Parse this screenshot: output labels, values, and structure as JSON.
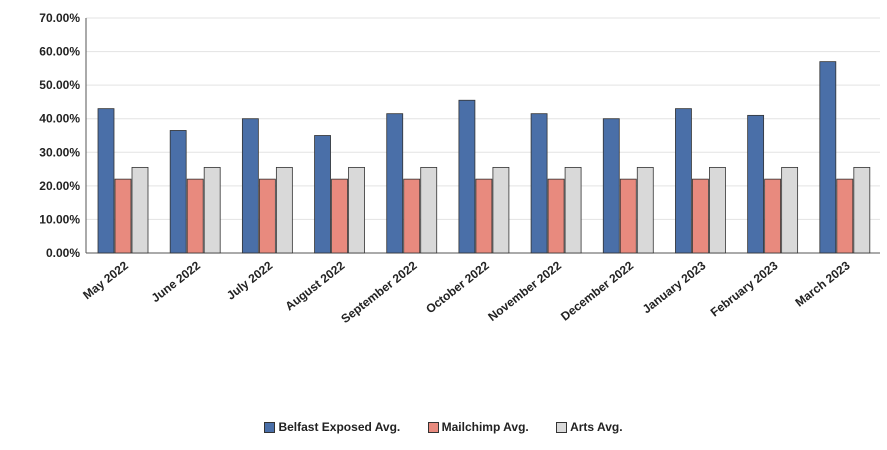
{
  "chart_data": {
    "type": "bar",
    "title": "",
    "xlabel": "",
    "ylabel": "",
    "ylim": [
      0,
      70
    ],
    "y_ticks": [
      "0.00%",
      "10.00%",
      "20.00%",
      "30.00%",
      "40.00%",
      "50.00%",
      "60.00%",
      "70.00%"
    ],
    "grid": true,
    "legend_position": "bottom",
    "categories": [
      "May 2022",
      "June 2022",
      "July 2022",
      "August 2022",
      "September 2022",
      "October 2022",
      "November 2022",
      "December 2022",
      "January 2023",
      "February 2023",
      "March 2023"
    ],
    "series": [
      {
        "name": "Belfast Exposed Avg.",
        "color": "#4a6fa8",
        "values": [
          43,
          36.5,
          40,
          35,
          41.5,
          45.5,
          41.5,
          40,
          43,
          41,
          57
        ]
      },
      {
        "name": "Mailchimp Avg.",
        "color": "#e88a7e",
        "values": [
          22,
          22,
          22,
          22,
          22,
          22,
          22,
          22,
          22,
          22,
          22
        ]
      },
      {
        "name": "Arts Avg.",
        "color": "#d9d9d9",
        "values": [
          25.5,
          25.5,
          25.5,
          25.5,
          25.5,
          25.5,
          25.5,
          25.5,
          25.5,
          25.5,
          25.5
        ]
      }
    ]
  }
}
